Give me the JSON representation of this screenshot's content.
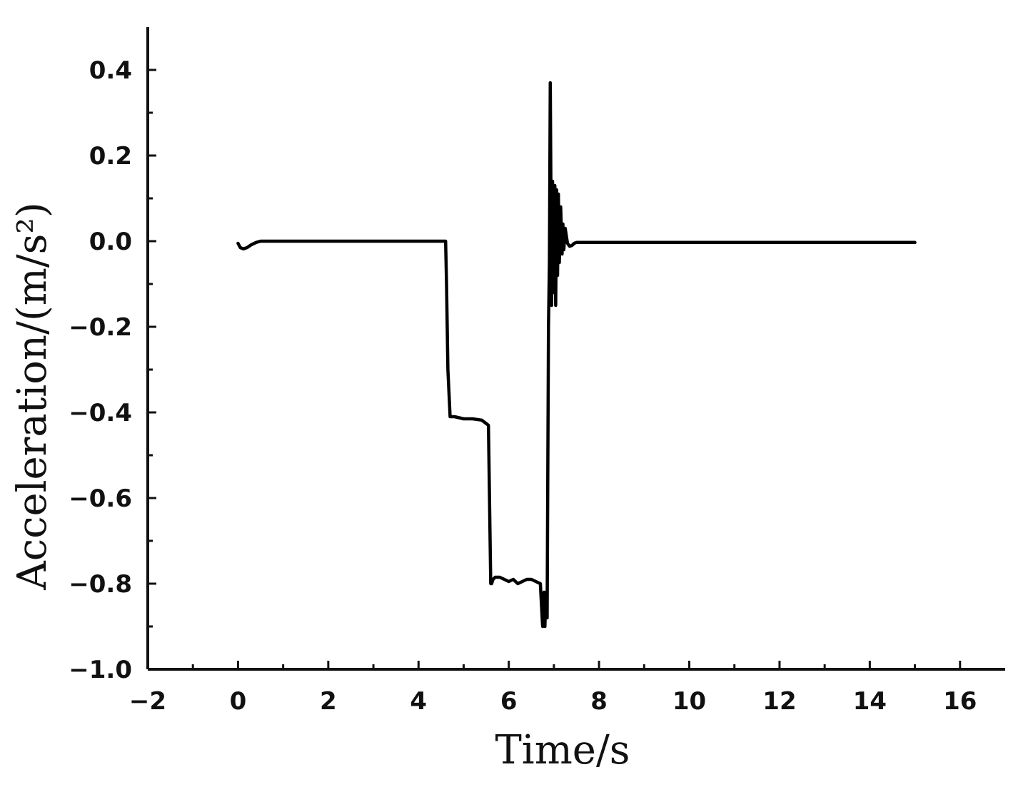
{
  "chart_data": {
    "type": "line",
    "xlabel": "Time/s",
    "ylabel": "Acceleration/(m/s²)",
    "xlim": [
      -2,
      17
    ],
    "ylim": [
      -1.0,
      0.5
    ],
    "x_ticks": [
      -2,
      0,
      2,
      4,
      6,
      8,
      10,
      12,
      14,
      16
    ],
    "x_tick_labels": [
      "−2",
      "0",
      "2",
      "4",
      "6",
      "8",
      "10",
      "12",
      "14",
      "16"
    ],
    "y_ticks": [
      0.4,
      0.2,
      0.0,
      -0.2,
      -0.4,
      -0.6,
      -0.8,
      -1.0
    ],
    "y_tick_labels": [
      "0.4",
      "0.2",
      "0.0",
      "−0.2",
      "−0.4",
      "−0.6",
      "−0.8",
      "−1.0"
    ],
    "grid": false,
    "legend": "none",
    "series": [
      {
        "color": "#000000",
        "x": [
          0.0,
          0.05,
          0.12,
          0.2,
          0.3,
          0.4,
          0.5,
          1.0,
          2.0,
          3.0,
          4.0,
          4.6,
          4.62,
          4.65,
          4.7,
          4.8,
          5.0,
          5.2,
          5.4,
          5.55,
          5.6,
          5.62,
          5.65,
          5.7,
          5.8,
          5.9,
          6.0,
          6.1,
          6.2,
          6.3,
          6.4,
          6.5,
          6.6,
          6.7,
          6.75,
          6.78,
          6.8,
          6.82,
          6.85,
          6.88,
          6.9,
          6.92,
          6.95,
          6.97,
          7.0,
          7.02,
          7.04,
          7.06,
          7.08,
          7.1,
          7.12,
          7.15,
          7.18,
          7.2,
          7.22,
          7.25,
          7.3,
          7.35,
          7.4,
          7.45,
          7.5,
          8.0,
          10.0,
          12.0,
          14.0,
          15.0
        ],
        "y": [
          -0.005,
          -0.015,
          -0.018,
          -0.015,
          -0.008,
          -0.003,
          0.0,
          0.0,
          0.0,
          0.0,
          0.0,
          0.0,
          -0.1,
          -0.3,
          -0.41,
          -0.41,
          -0.415,
          -0.415,
          -0.418,
          -0.43,
          -0.8,
          -0.8,
          -0.79,
          -0.785,
          -0.785,
          -0.79,
          -0.795,
          -0.79,
          -0.8,
          -0.795,
          -0.79,
          -0.79,
          -0.795,
          -0.8,
          -0.9,
          -0.82,
          -0.9,
          -0.82,
          -0.88,
          -0.2,
          -0.05,
          0.37,
          -0.15,
          0.14,
          -0.12,
          0.13,
          -0.15,
          0.12,
          -0.08,
          0.11,
          -0.05,
          0.08,
          -0.03,
          0.04,
          -0.02,
          0.03,
          -0.005,
          -0.012,
          -0.01,
          -0.005,
          -0.003,
          -0.003,
          -0.003,
          -0.003,
          -0.003,
          -0.003
        ]
      }
    ]
  }
}
